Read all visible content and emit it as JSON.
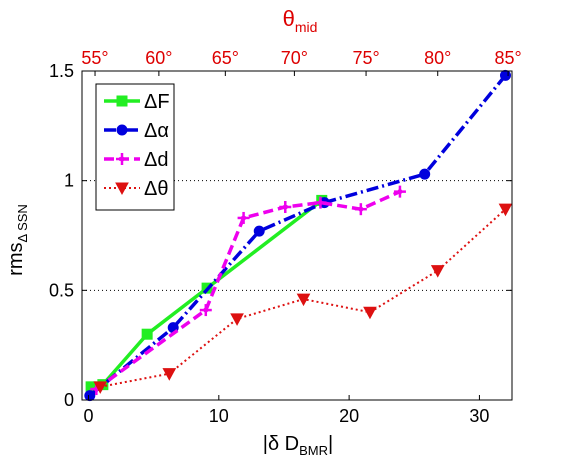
{
  "chart_data": {
    "type": "line",
    "xlabel": "|δ D",
    "xlabel_sub": "BMR",
    "xlabel_end": "|",
    "ylabel": "rms",
    "ylabel_sub": "Δ SSN",
    "top_xlabel": "θ",
    "top_xlabel_sub": "mid",
    "xlim": [
      -0.5,
      32.5
    ],
    "ylim": [
      0,
      1.5
    ],
    "x_ticks": [
      0,
      10,
      20,
      30
    ],
    "y_ticks": [
      0,
      0.5,
      1,
      1.5
    ],
    "y_tick_labels": [
      "0",
      "0.5",
      "1",
      "1.5"
    ],
    "gridlines_y": [
      0.5,
      1
    ],
    "top_ticks": [
      {
        "x": 0.5,
        "label": "55°"
      },
      {
        "x": 5.4,
        "label": "60°"
      },
      {
        "x": 10.5,
        "label": "65°"
      },
      {
        "x": 15.8,
        "label": "70°"
      },
      {
        "x": 21.3,
        "label": "75°"
      },
      {
        "x": 26.8,
        "label": "80°"
      },
      {
        "x": 32.2,
        "label": "85°"
      }
    ],
    "legend_position": "top-left",
    "series": [
      {
        "name": "ΔF",
        "color": "#22ee22",
        "style": "solid",
        "marker": "square",
        "x": [
          0.2,
          1.1,
          4.5,
          9.1,
          17.9
        ],
        "y": [
          0.06,
          0.07,
          0.3,
          0.51,
          0.91
        ]
      },
      {
        "name": "Δα",
        "color": "#0000dd",
        "style": "dashdot",
        "marker": "circle",
        "x": [
          0.1,
          6.5,
          13.1,
          18.1,
          25.8,
          32.0
        ],
        "y": [
          0.02,
          0.33,
          0.77,
          0.9,
          1.03,
          1.48
        ]
      },
      {
        "name": "Δd",
        "color": "#ee00ee",
        "style": "dashed",
        "marker": "plus-dot",
        "x": [
          0.6,
          9.0,
          11.9,
          15.1,
          17.8,
          20.9,
          23.9
        ],
        "y": [
          0.05,
          0.41,
          0.83,
          0.88,
          0.9,
          0.87,
          0.95
        ]
      },
      {
        "name": "Δθ",
        "color": "#dd1111",
        "style": "dotted",
        "marker": "triangle-down",
        "x": [
          0.9,
          6.2,
          11.4,
          16.5,
          21.6,
          26.8,
          32.0
        ],
        "y": [
          0.06,
          0.12,
          0.37,
          0.46,
          0.4,
          0.59,
          0.87
        ]
      }
    ]
  }
}
